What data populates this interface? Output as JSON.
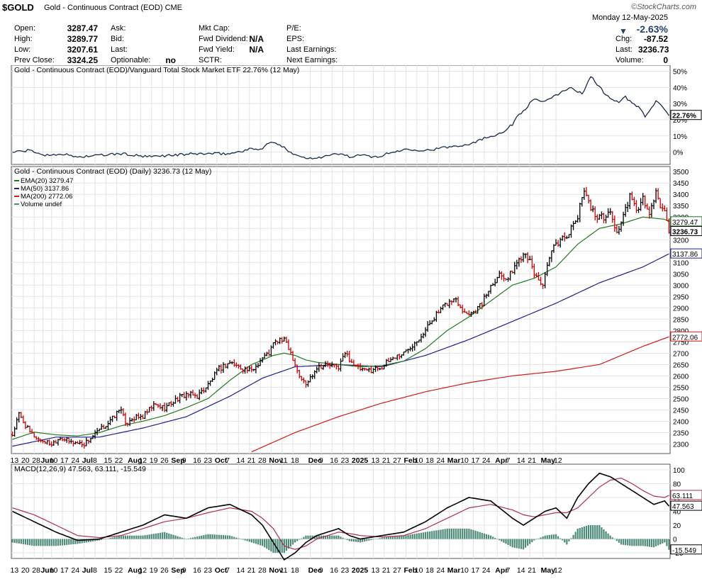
{
  "header": {
    "symbol": "$GOLD",
    "name": "Gold - Continuous Contract (EOD)",
    "exchange": "CME",
    "site": "©StockCharts.com",
    "date": "Monday 12-May-2025",
    "change_pct": "-2.63%",
    "col1": [
      {
        "label": "Open:",
        "value": "3287.47"
      },
      {
        "label": "High:",
        "value": "3289.77"
      },
      {
        "label": "Low:",
        "value": "3207.61"
      },
      {
        "label": "Prev Close:",
        "value": "3324.25"
      }
    ],
    "col2": [
      {
        "label": "Ask:",
        "value": ""
      },
      {
        "label": "Bid:",
        "value": ""
      },
      {
        "label": "Last:",
        "value": ""
      },
      {
        "label": "Optionable:",
        "value": "no"
      }
    ],
    "col3": [
      {
        "label": "Mkt Cap:",
        "value": ""
      },
      {
        "label": "Fwd Dividend:",
        "value": "N/A"
      },
      {
        "label": "Fwd Yield:",
        "value": "N/A"
      },
      {
        "label": "SCTR:",
        "value": ""
      }
    ],
    "col4": [
      {
        "label": "P/E:",
        "value": ""
      },
      {
        "label": "EPS:",
        "value": ""
      },
      {
        "label": "Last Earnings:",
        "value": ""
      },
      {
        "label": "Next Earnings:",
        "value": ""
      }
    ],
    "right": [
      {
        "label": "Chg:",
        "value": "-87.52"
      },
      {
        "label": "Last:",
        "value": "3236.73"
      },
      {
        "label": "Volume:",
        "value": "0"
      }
    ]
  },
  "colors": {
    "ema20": "#1f7a1f",
    "ma50": "#1f1f8c",
    "ma200": "#d11a1a",
    "ratio": "#1a2a4a",
    "macd_line": "#000000",
    "signal_line": "#b0304a",
    "histogram": "#4d8a7a",
    "up_bar": "#000000",
    "down_bar": "#cc0000"
  },
  "chart_data": [
    {
      "type": "line",
      "title": "Gold - Continuous Contract (EOD)/Vanguard Total Stock Market ETF 22.76% (12 May)",
      "ylabel_unit": "%",
      "ylim": [
        -5,
        52
      ],
      "yticks": [
        "50%",
        "40%",
        "30%",
        "20%",
        "10%",
        "0%"
      ],
      "ytick_values": [
        50,
        40,
        30,
        20,
        10,
        0
      ],
      "last_label": "22.76%",
      "x_index": [
        0,
        8,
        15,
        22,
        30,
        40,
        50,
        62,
        72,
        85,
        95,
        100,
        110,
        115,
        118,
        122,
        128,
        135,
        142,
        150,
        156,
        160,
        168,
        175,
        182,
        190,
        200,
        210,
        218,
        225,
        230,
        232,
        236,
        240,
        245,
        250,
        256,
        262,
        266,
        269,
        272,
        275,
        279,
        282,
        285,
        288,
        291,
        294,
        296,
        298,
        300,
        302
      ],
      "values": [
        0,
        1,
        -2,
        -1,
        -3,
        -2,
        -1,
        -3,
        -2,
        -1,
        -1,
        -1,
        2,
        2,
        6,
        5,
        0,
        -4,
        -3,
        -1,
        -3,
        -2,
        -3,
        0,
        2,
        1,
        3,
        5,
        9,
        12,
        17,
        22,
        27,
        33,
        31,
        35,
        40,
        36,
        47,
        42,
        37,
        33,
        31,
        34,
        30,
        28,
        22,
        27,
        31,
        30,
        26,
        22.76
      ]
    },
    {
      "type": "ohlc",
      "title": "Gold - Continuous Contract (EOD) (Daily) 3236.73 (12 May)",
      "legend": [
        {
          "name": "EMA(20) 3279.47",
          "color": "#1f7a1f"
        },
        {
          "name": "MA(50) 3137.86",
          "color": "#1f1f8c"
        },
        {
          "name": "MA(200) 2772.06",
          "color": "#d11a1a"
        },
        {
          "name": "Volume undef",
          "color": "#4d8a7a"
        }
      ],
      "ylim": [
        2270,
        3510
      ],
      "yticks": [
        3500,
        3450,
        3400,
        3350,
        3300,
        3250,
        3200,
        3150,
        3100,
        3050,
        3000,
        2950,
        2900,
        2850,
        2800,
        2750,
        2700,
        2650,
        2600,
        2550,
        2500,
        2450,
        2400,
        2350,
        2300
      ],
      "last_labels": [
        {
          "text": "3279.47",
          "value": 3279.47,
          "series": "ema20"
        },
        {
          "text": "3236.73",
          "value": 3236.73,
          "series": "price"
        },
        {
          "text": "3137.86",
          "value": 3137.86,
          "series": "ma50"
        },
        {
          "text": "2772.06",
          "value": 2772.06,
          "series": "ma200"
        }
      ],
      "close_keypoints": {
        "x_index": [
          0,
          3,
          8,
          12,
          18,
          22,
          26,
          33,
          40,
          45,
          50,
          52,
          54,
          60,
          65,
          70,
          76,
          80,
          85,
          90,
          95,
          100,
          104,
          110,
          115,
          118,
          120,
          123,
          126,
          129,
          132,
          135,
          140,
          145,
          148,
          150,
          153,
          158,
          162,
          166,
          170,
          175,
          180,
          186,
          190,
          193,
          196,
          200,
          204,
          208,
          212,
          216,
          220,
          224,
          228,
          232,
          236,
          240,
          244,
          248,
          252,
          256,
          260,
          263,
          266,
          268,
          270,
          272,
          275,
          278,
          281,
          284,
          286,
          288,
          290,
          293,
          296,
          298,
          300,
          302
        ],
        "values": [
          2340,
          2430,
          2350,
          2320,
          2300,
          2330,
          2310,
          2300,
          2360,
          2400,
          2460,
          2380,
          2410,
          2420,
          2470,
          2460,
          2500,
          2520,
          2510,
          2560,
          2630,
          2660,
          2640,
          2620,
          2680,
          2700,
          2740,
          2760,
          2750,
          2680,
          2600,
          2560,
          2640,
          2650,
          2640,
          2640,
          2700,
          2640,
          2620,
          2630,
          2640,
          2680,
          2700,
          2760,
          2800,
          2850,
          2880,
          2920,
          2940,
          2880,
          2880,
          2920,
          3000,
          3050,
          3030,
          3100,
          3150,
          3050,
          3000,
          3150,
          3200,
          3230,
          3300,
          3430,
          3340,
          3310,
          3300,
          3300,
          3320,
          3230,
          3300,
          3390,
          3350,
          3330,
          3380,
          3310,
          3400,
          3350,
          3324,
          3236.73
        ]
      },
      "ema20_keypoints": {
        "x_index": [
          0,
          10,
          20,
          30,
          40,
          50,
          60,
          70,
          80,
          90,
          100,
          110,
          115,
          120,
          125,
          130,
          135,
          140,
          150,
          160,
          170,
          180,
          190,
          200,
          210,
          220,
          230,
          240,
          250,
          260,
          270,
          280,
          290,
          300,
          302
        ],
        "values": [
          2320,
          2352,
          2340,
          2335,
          2350,
          2380,
          2400,
          2425,
          2460,
          2500,
          2580,
          2650,
          2670,
          2690,
          2700,
          2690,
          2670,
          2660,
          2650,
          2640,
          2645,
          2665,
          2720,
          2800,
          2860,
          2930,
          3000,
          3030,
          3080,
          3180,
          3250,
          3270,
          3300,
          3290,
          3279.47
        ]
      },
      "ma50_keypoints": {
        "x_index": [
          0,
          20,
          40,
          60,
          80,
          100,
          115,
          130,
          150,
          170,
          190,
          210,
          230,
          250,
          270,
          290,
          302
        ],
        "values": [
          2290,
          2330,
          2330,
          2370,
          2420,
          2510,
          2590,
          2640,
          2650,
          2640,
          2690,
          2760,
          2840,
          2920,
          3010,
          3080,
          3137.86
        ]
      },
      "ma200_keypoints": {
        "x_index": [
          110,
          130,
          150,
          170,
          190,
          210,
          230,
          250,
          270,
          290,
          302
        ],
        "values": [
          2265,
          2350,
          2420,
          2480,
          2530,
          2570,
          2600,
          2620,
          2650,
          2730,
          2772.06
        ]
      }
    },
    {
      "type": "line",
      "title": "MACD(12,26,9) 47.563, 63.111, -15.549",
      "ylim": [
        -25,
        105
      ],
      "yticks": [
        100,
        80,
        60,
        40,
        20,
        0,
        -20
      ],
      "last_labels": [
        {
          "text": "63.111",
          "value": 63.111
        },
        {
          "text": "47.563",
          "value": 47.563
        },
        {
          "text": "-15.549",
          "value": -15.549
        }
      ],
      "x_index": [
        0,
        10,
        20,
        30,
        40,
        50,
        60,
        70,
        80,
        90,
        100,
        110,
        115,
        120,
        125,
        130,
        135,
        140,
        145,
        150,
        155,
        160,
        170,
        180,
        190,
        200,
        210,
        220,
        230,
        235,
        240,
        245,
        250,
        255,
        260,
        265,
        270,
        275,
        280,
        285,
        290,
        295,
        300,
        302
      ],
      "macd": [
        40,
        25,
        10,
        -2,
        0,
        10,
        20,
        35,
        30,
        45,
        50,
        35,
        20,
        -5,
        -30,
        -20,
        -5,
        5,
        10,
        15,
        5,
        0,
        5,
        10,
        25,
        45,
        60,
        55,
        30,
        20,
        30,
        40,
        45,
        30,
        60,
        80,
        95,
        90,
        80,
        70,
        60,
        50,
        55,
        47.563
      ],
      "signal": [
        45,
        35,
        20,
        5,
        2,
        5,
        15,
        25,
        30,
        38,
        45,
        40,
        30,
        15,
        -10,
        -15,
        -10,
        0,
        5,
        10,
        8,
        5,
        3,
        5,
        15,
        30,
        45,
        50,
        42,
        35,
        32,
        35,
        38,
        38,
        45,
        60,
        75,
        85,
        88,
        80,
        70,
        62,
        60,
        63.111
      ],
      "histogram": [
        -5,
        -10,
        -10,
        -7,
        -2,
        5,
        5,
        10,
        0,
        7,
        5,
        -5,
        -10,
        -20,
        -20,
        -5,
        5,
        5,
        5,
        5,
        -3,
        -5,
        2,
        5,
        10,
        15,
        15,
        5,
        -12,
        -15,
        -2,
        5,
        7,
        -8,
        15,
        20,
        20,
        5,
        -8,
        -10,
        -10,
        -12,
        -5,
        -15.549
      ]
    }
  ],
  "x_axis": {
    "labels": [
      "13",
      "20",
      "28",
      "Jun",
      "10",
      "17",
      "24",
      "Jul",
      "8",
      "15",
      "22",
      "Aug",
      "12",
      "19",
      "26",
      "Sep",
      "9",
      "16",
      "23",
      "Oct",
      "7",
      "14",
      "21",
      "28",
      "Nov",
      "11",
      "18",
      "Dec",
      "9",
      "16",
      "23",
      "2025",
      "13",
      "21",
      "27",
      "Feb",
      "10",
      "18",
      "24",
      "Mar",
      "10",
      "17",
      "24",
      "Apr",
      "7",
      "14",
      "21",
      "May",
      "12"
    ],
    "label_index": [
      0,
      5,
      10,
      14,
      18,
      23,
      28,
      33,
      38,
      43,
      48,
      54,
      59,
      64,
      69,
      74,
      79,
      84,
      89,
      94,
      99,
      104,
      109,
      114,
      119,
      124,
      129,
      137,
      142,
      147,
      152,
      157,
      166,
      171,
      176,
      181,
      186,
      191,
      196,
      201,
      207,
      212,
      217,
      223,
      228,
      233,
      238,
      244,
      250
    ],
    "bold": [
      "Jun",
      "Jul",
      "Aug",
      "Sep",
      "Oct",
      "Nov",
      "Dec",
      "2025",
      "Feb",
      "Mar",
      "Apr",
      "May"
    ],
    "n_bars": 303
  }
}
